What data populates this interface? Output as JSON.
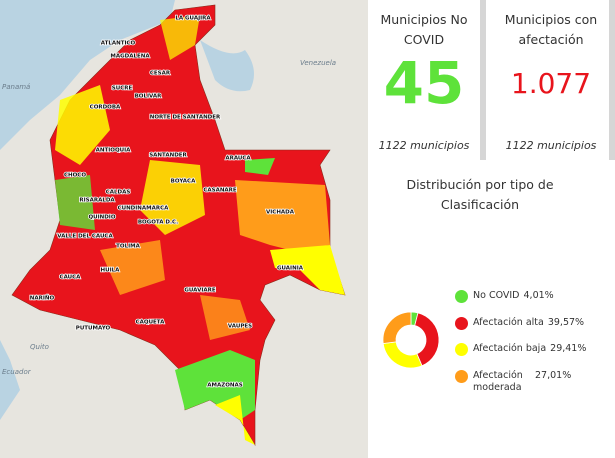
{
  "cards": [
    {
      "title": "Municipios No COVID",
      "value": "45",
      "subtitle": "1122 municipios"
    },
    {
      "title": "Municipios con afectación",
      "value": "1.077",
      "subtitle": "1122 municipios"
    }
  ],
  "chart_data": {
    "type": "pie",
    "title": "Distribución por tipo de Clasificación",
    "categories": [
      "No COVID",
      "Afectación alta",
      "Afectación baja",
      "Afectación moderada"
    ],
    "values": [
      4.01,
      39.57,
      29.41,
      27.01
    ],
    "value_labels": [
      "4,01%",
      "39,57%",
      "29,41%",
      "27,01%"
    ],
    "colors": [
      "#5ee23a",
      "#e8141c",
      "#ffff00",
      "#ff9c1a"
    ]
  },
  "map": {
    "labels": [
      "LA GUAJIRA",
      "ATLANTICO",
      "MAGDALENA",
      "CESAR",
      "SUCRE",
      "BOLIVAR",
      "CORDOBA",
      "NORTE DE SANTANDER",
      "ANTIOQUIA",
      "SANTANDER",
      "ARAUCA",
      "CHOCO",
      "BOYACA",
      "CALDAS",
      "CASANARE",
      "RISARALDA",
      "CUNDINAMARCA",
      "QUINDIO",
      "BOGOTA D.C.",
      "VICHADA",
      "VALLE DEL CAUCA",
      "TOLIMA",
      "GUAINIA",
      "CAUCA",
      "HUILA",
      "NARIÑO",
      "GUAVIARE",
      "CAQUETA",
      "PUTUMAYO",
      "VAUPES",
      "AMAZONAS"
    ],
    "base_labels": [
      "Panamá",
      "Venezuela",
      "Quito",
      "Ecuador"
    ]
  }
}
